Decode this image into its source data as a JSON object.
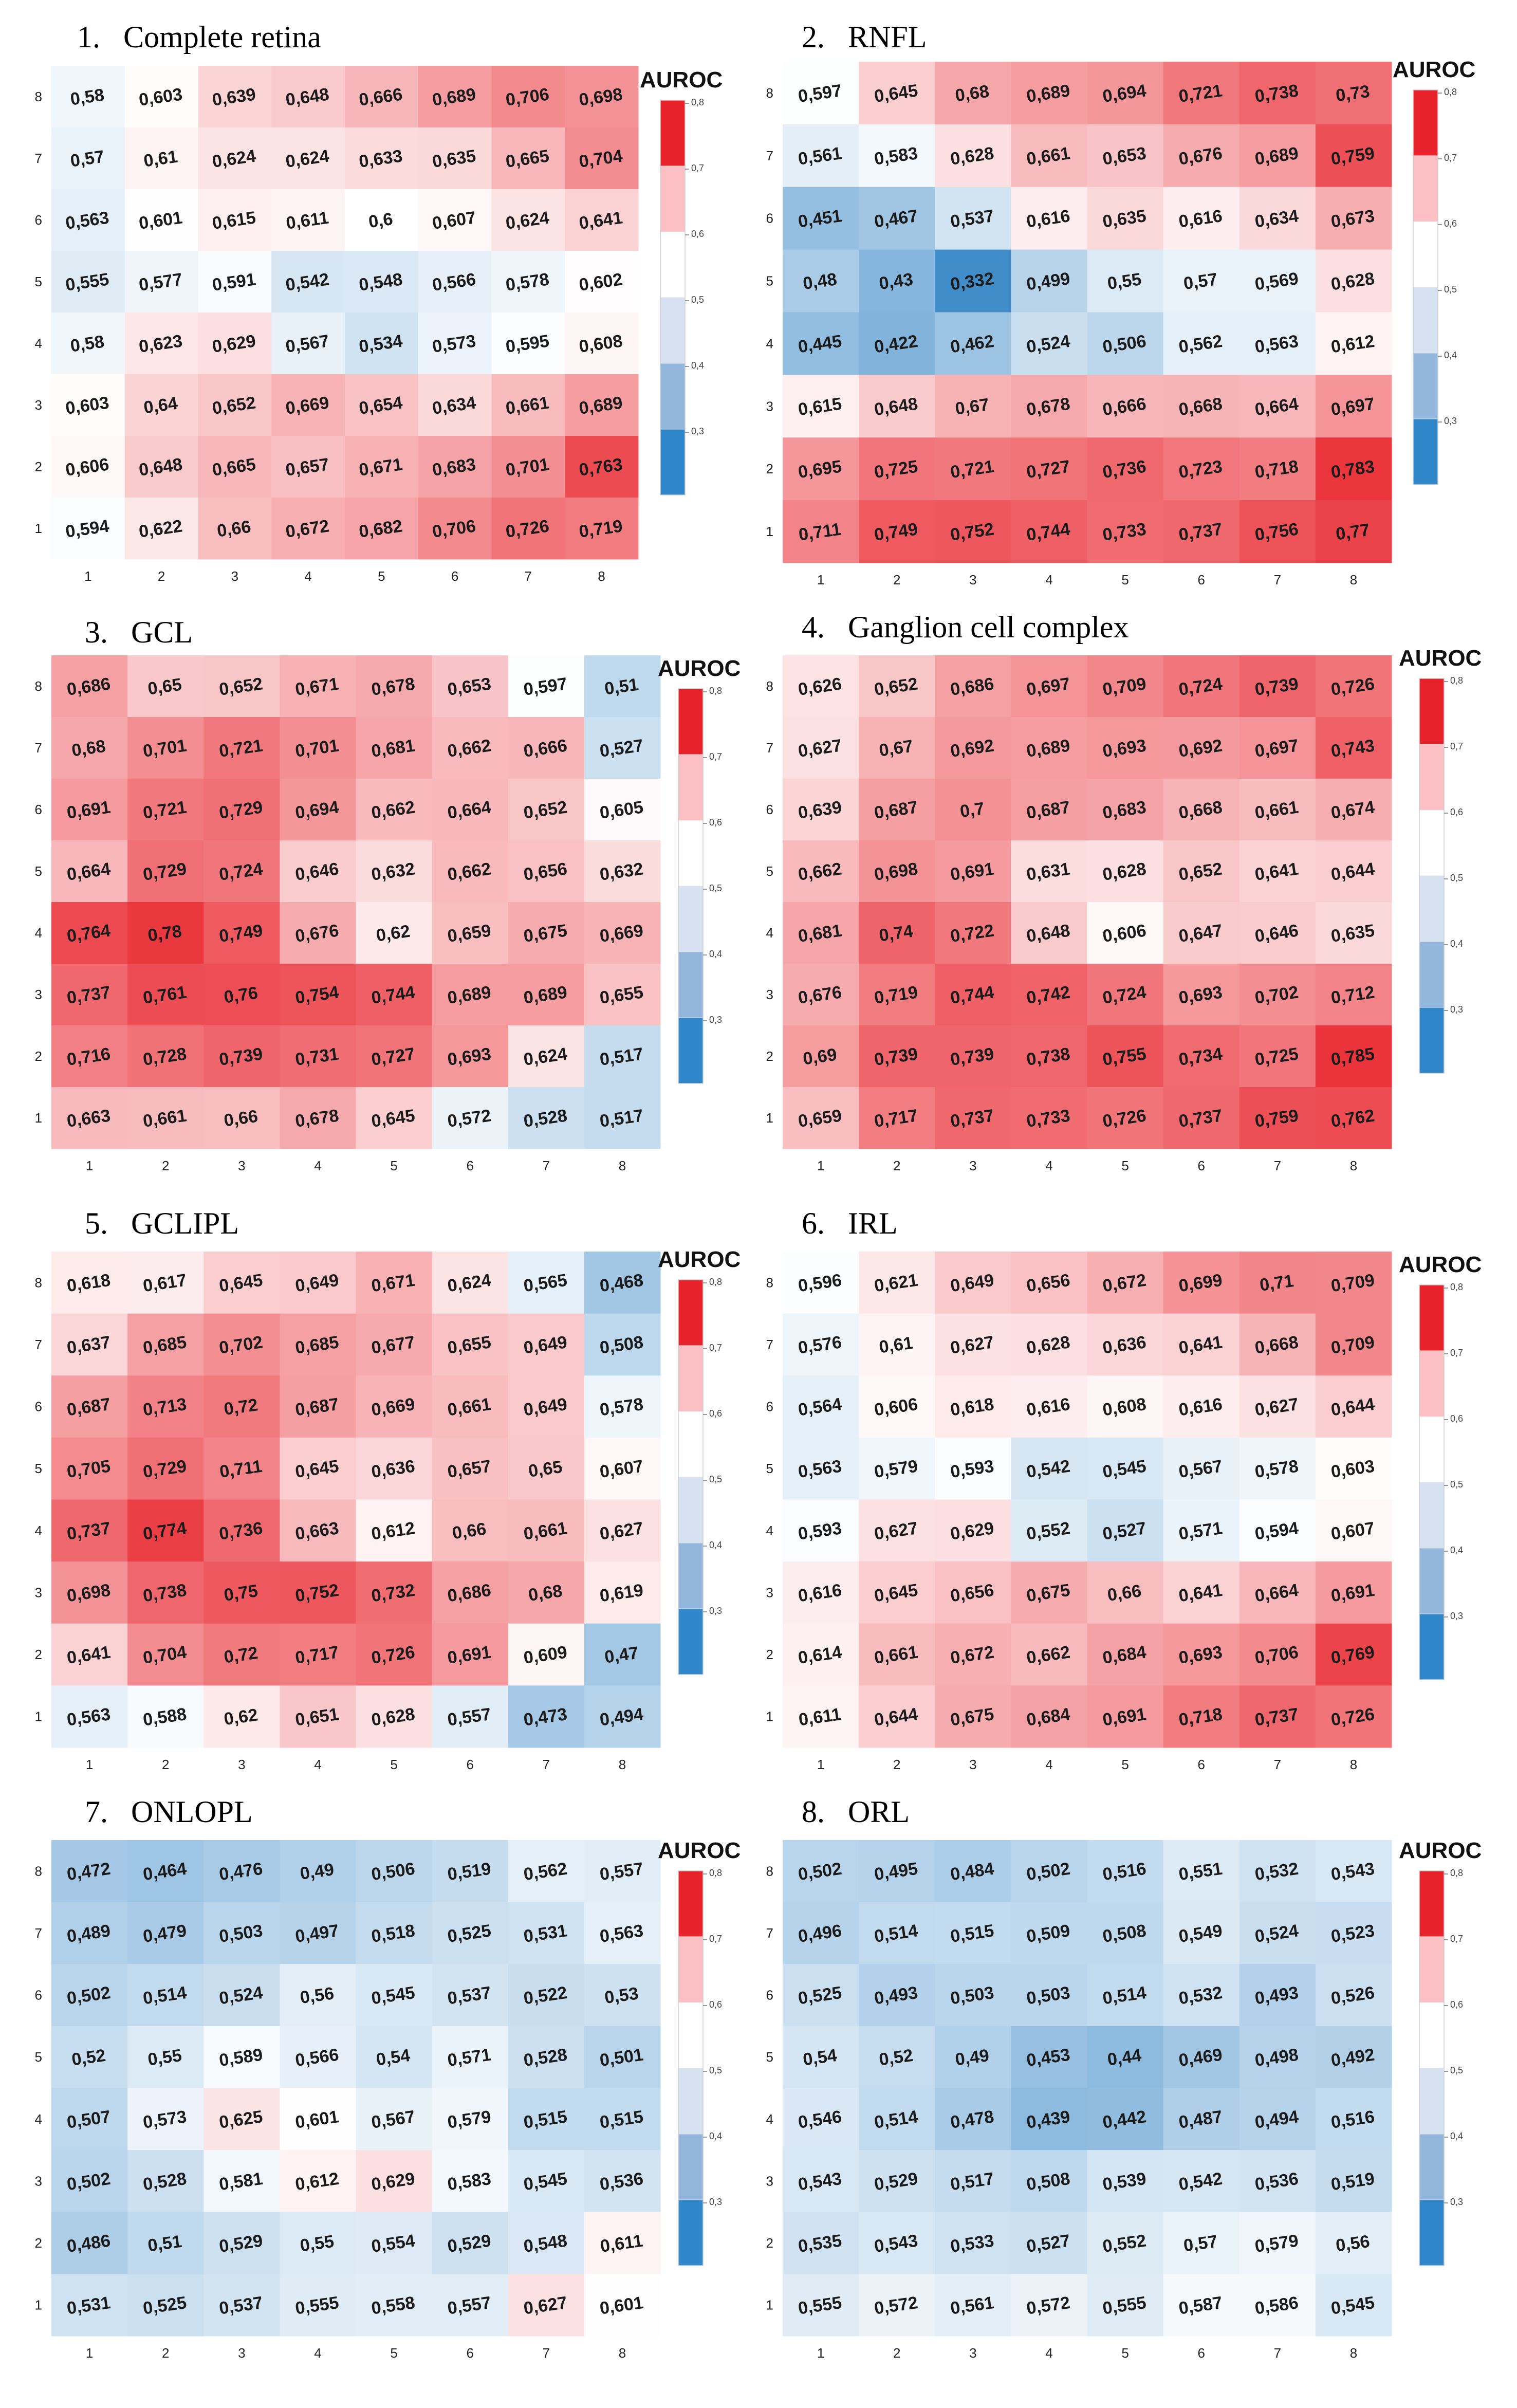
{
  "figure": {
    "colorbar_title": "AUROC",
    "colorbar_ticks": [
      "0,8",
      "0,7",
      "0,6",
      "0,5",
      "0,4",
      "0,3"
    ],
    "colorbar_colors": [
      "#e8222a",
      "#fbbfc4",
      "#ffffff",
      "#d6e2f2",
      "#93b6dc",
      "#2f86c8"
    ],
    "color_scale": {
      "min": 0.3,
      "mid": 0.6,
      "max": 0.8,
      "low_color": "#2a7fc3",
      "mid_color": "#ffffff",
      "high_color": "#e8222a"
    }
  },
  "chart_data": [
    {
      "type": "heatmap",
      "number": "1.",
      "title": "Complete retina",
      "x_ticks": [
        "1",
        "2",
        "3",
        "4",
        "5",
        "6",
        "7",
        "8"
      ],
      "y_ticks": [
        "8",
        "7",
        "6",
        "5",
        "4",
        "3",
        "2",
        "1"
      ],
      "values": [
        [
          "0,58",
          "0,603",
          "0,639",
          "0,648",
          "0,666",
          "0,689",
          "0,706",
          "0,698"
        ],
        [
          "0,57",
          "0,61",
          "0,624",
          "0,624",
          "0,633",
          "0,635",
          "0,665",
          "0,704"
        ],
        [
          "0,563",
          "0,601",
          "0,615",
          "0,611",
          "0,6",
          "0,607",
          "0,624",
          "0,641"
        ],
        [
          "0,555",
          "0,577",
          "0,591",
          "0,542",
          "0,548",
          "0,566",
          "0,578",
          "0,602"
        ],
        [
          "0,58",
          "0,623",
          "0,629",
          "0,567",
          "0,534",
          "0,573",
          "0,595",
          "0,608"
        ],
        [
          "0,603",
          "0,64",
          "0,652",
          "0,669",
          "0,654",
          "0,634",
          "0,661",
          "0,689"
        ],
        [
          "0,606",
          "0,648",
          "0,665",
          "0,657",
          "0,671",
          "0,683",
          "0,701",
          "0,763"
        ],
        [
          "0,594",
          "0,622",
          "0,66",
          "0,672",
          "0,682",
          "0,706",
          "0,726",
          "0,719"
        ]
      ]
    },
    {
      "type": "heatmap",
      "number": "2.",
      "title": "RNFL",
      "x_ticks": [
        "1",
        "2",
        "3",
        "4",
        "5",
        "6",
        "7",
        "8"
      ],
      "y_ticks": [
        "8",
        "7",
        "6",
        "5",
        "4",
        "3",
        "2",
        "1"
      ],
      "values": [
        [
          "0,597",
          "0,645",
          "0,68",
          "0,689",
          "0,694",
          "0,721",
          "0,738",
          "0,73"
        ],
        [
          "0,561",
          "0,583",
          "0,628",
          "0,661",
          "0,653",
          "0,676",
          "0,689",
          "0,759"
        ],
        [
          "0,451",
          "0,467",
          "0,537",
          "0,616",
          "0,635",
          "0,616",
          "0,634",
          "0,673"
        ],
        [
          "0,48",
          "0,43",
          "0,332",
          "0,499",
          "0,55",
          "0,57",
          "0,569",
          "0,628"
        ],
        [
          "0,445",
          "0,422",
          "0,462",
          "0,524",
          "0,506",
          "0,562",
          "0,563",
          "0,612"
        ],
        [
          "0,615",
          "0,648",
          "0,67",
          "0,678",
          "0,666",
          "0,668",
          "0,664",
          "0,697"
        ],
        [
          "0,695",
          "0,725",
          "0,721",
          "0,727",
          "0,736",
          "0,723",
          "0,718",
          "0,783"
        ],
        [
          "0,711",
          "0,749",
          "0,752",
          "0,744",
          "0,733",
          "0,737",
          "0,756",
          "0,77"
        ]
      ]
    },
    {
      "type": "heatmap",
      "number": "3.",
      "title": "GCL",
      "x_ticks": [
        "1",
        "2",
        "3",
        "4",
        "5",
        "6",
        "7",
        "8"
      ],
      "y_ticks": [
        "8",
        "7",
        "6",
        "5",
        "4",
        "3",
        "2",
        "1"
      ],
      "values": [
        [
          "0,686",
          "0,65",
          "0,652",
          "0,671",
          "0,678",
          "0,653",
          "0,597",
          "0,51"
        ],
        [
          "0,68",
          "0,701",
          "0,721",
          "0,701",
          "0,681",
          "0,662",
          "0,666",
          "0,527"
        ],
        [
          "0,691",
          "0,721",
          "0,729",
          "0,694",
          "0,662",
          "0,664",
          "0,652",
          "0,605"
        ],
        [
          "0,664",
          "0,729",
          "0,724",
          "0,646",
          "0,632",
          "0,662",
          "0,656",
          "0,632"
        ],
        [
          "0,764",
          "0,78",
          "0,749",
          "0,676",
          "0,62",
          "0,659",
          "0,675",
          "0,669"
        ],
        [
          "0,737",
          "0,761",
          "0,76",
          "0,754",
          "0,744",
          "0,689",
          "0,689",
          "0,655"
        ],
        [
          "0,716",
          "0,728",
          "0,739",
          "0,731",
          "0,727",
          "0,693",
          "0,624",
          "0,517"
        ],
        [
          "0,663",
          "0,661",
          "0,66",
          "0,678",
          "0,645",
          "0,572",
          "0,528",
          "0,517"
        ]
      ]
    },
    {
      "type": "heatmap",
      "number": "4.",
      "title": "Ganglion cell complex",
      "x_ticks": [
        "1",
        "2",
        "3",
        "4",
        "5",
        "6",
        "7",
        "8"
      ],
      "y_ticks": [
        "8",
        "7",
        "6",
        "5",
        "4",
        "3",
        "2",
        "1"
      ],
      "values": [
        [
          "0,626",
          "0,652",
          "0,686",
          "0,697",
          "0,709",
          "0,724",
          "0,739",
          "0,726"
        ],
        [
          "0,627",
          "0,67",
          "0,692",
          "0,689",
          "0,693",
          "0,692",
          "0,697",
          "0,743"
        ],
        [
          "0,639",
          "0,687",
          "0,7",
          "0,687",
          "0,683",
          "0,668",
          "0,661",
          "0,674"
        ],
        [
          "0,662",
          "0,698",
          "0,691",
          "0,631",
          "0,628",
          "0,652",
          "0,641",
          "0,644"
        ],
        [
          "0,681",
          "0,74",
          "0,722",
          "0,648",
          "0,606",
          "0,647",
          "0,646",
          "0,635"
        ],
        [
          "0,676",
          "0,719",
          "0,744",
          "0,742",
          "0,724",
          "0,693",
          "0,702",
          "0,712"
        ],
        [
          "0,69",
          "0,739",
          "0,739",
          "0,738",
          "0,755",
          "0,734",
          "0,725",
          "0,785"
        ],
        [
          "0,659",
          "0,717",
          "0,737",
          "0,733",
          "0,726",
          "0,737",
          "0,759",
          "0,762"
        ]
      ]
    },
    {
      "type": "heatmap",
      "number": "5.",
      "title": "GCLIPL",
      "x_ticks": [
        "1",
        "2",
        "3",
        "4",
        "5",
        "6",
        "7",
        "8"
      ],
      "y_ticks": [
        "8",
        "7",
        "6",
        "5",
        "4",
        "3",
        "2",
        "1"
      ],
      "values": [
        [
          "0,618",
          "0,617",
          "0,645",
          "0,649",
          "0,671",
          "0,624",
          "0,565",
          "0,468"
        ],
        [
          "0,637",
          "0,685",
          "0,702",
          "0,685",
          "0,677",
          "0,655",
          "0,649",
          "0,508"
        ],
        [
          "0,687",
          "0,713",
          "0,72",
          "0,687",
          "0,669",
          "0,661",
          "0,649",
          "0,578"
        ],
        [
          "0,705",
          "0,729",
          "0,711",
          "0,645",
          "0,636",
          "0,657",
          "0,65",
          "0,607"
        ],
        [
          "0,737",
          "0,774",
          "0,736",
          "0,663",
          "0,612",
          "0,66",
          "0,661",
          "0,627"
        ],
        [
          "0,698",
          "0,738",
          "0,75",
          "0,752",
          "0,732",
          "0,686",
          "0,68",
          "0,619"
        ],
        [
          "0,641",
          "0,704",
          "0,72",
          "0,717",
          "0,726",
          "0,691",
          "0,609",
          "0,47"
        ],
        [
          "0,563",
          "0,588",
          "0,62",
          "0,651",
          "0,628",
          "0,557",
          "0,473",
          "0,494"
        ]
      ]
    },
    {
      "type": "heatmap",
      "number": "6.",
      "title": "IRL",
      "x_ticks": [
        "1",
        "2",
        "3",
        "4",
        "5",
        "6",
        "7",
        "8"
      ],
      "y_ticks": [
        "8",
        "7",
        "6",
        "5",
        "4",
        "3",
        "2",
        "1"
      ],
      "values": [
        [
          "0,596",
          "0,621",
          "0,649",
          "0,656",
          "0,672",
          "0,699",
          "0,71",
          "0,709"
        ],
        [
          "0,576",
          "0,61",
          "0,627",
          "0,628",
          "0,636",
          "0,641",
          "0,668",
          "0,709"
        ],
        [
          "0,564",
          "0,606",
          "0,618",
          "0,616",
          "0,608",
          "0,616",
          "0,627",
          "0,644"
        ],
        [
          "0,563",
          "0,579",
          "0,593",
          "0,542",
          "0,545",
          "0,567",
          "0,578",
          "0,603"
        ],
        [
          "0,593",
          "0,627",
          "0,629",
          "0,552",
          "0,527",
          "0,571",
          "0,594",
          "0,607"
        ],
        [
          "0,616",
          "0,645",
          "0,656",
          "0,675",
          "0,66",
          "0,641",
          "0,664",
          "0,691"
        ],
        [
          "0,614",
          "0,661",
          "0,672",
          "0,662",
          "0,684",
          "0,693",
          "0,706",
          "0,769"
        ],
        [
          "0,611",
          "0,644",
          "0,675",
          "0,684",
          "0,691",
          "0,718",
          "0,737",
          "0,726"
        ]
      ]
    },
    {
      "type": "heatmap",
      "number": "7.",
      "title": "ONLOPL",
      "x_ticks": [
        "1",
        "2",
        "3",
        "4",
        "5",
        "6",
        "7",
        "8"
      ],
      "y_ticks": [
        "8",
        "7",
        "6",
        "5",
        "4",
        "3",
        "2",
        "1"
      ],
      "values": [
        [
          "0,472",
          "0,464",
          "0,476",
          "0,49",
          "0,506",
          "0,519",
          "0,562",
          "0,557"
        ],
        [
          "0,489",
          "0,479",
          "0,503",
          "0,497",
          "0,518",
          "0,525",
          "0,531",
          "0,563"
        ],
        [
          "0,502",
          "0,514",
          "0,524",
          "0,56",
          "0,545",
          "0,537",
          "0,522",
          "0,53"
        ],
        [
          "0,52",
          "0,55",
          "0,589",
          "0,566",
          "0,54",
          "0,571",
          "0,528",
          "0,501"
        ],
        [
          "0,507",
          "0,573",
          "0,625",
          "0,601",
          "0,567",
          "0,579",
          "0,515",
          "0,515"
        ],
        [
          "0,502",
          "0,528",
          "0,581",
          "0,612",
          "0,629",
          "0,583",
          "0,545",
          "0,536"
        ],
        [
          "0,486",
          "0,51",
          "0,529",
          "0,55",
          "0,554",
          "0,529",
          "0,548",
          "0,611"
        ],
        [
          "0,531",
          "0,525",
          "0,537",
          "0,555",
          "0,558",
          "0,557",
          "0,627",
          "0,601"
        ]
      ]
    },
    {
      "type": "heatmap",
      "number": "8.",
      "title": "ORL",
      "x_ticks": [
        "1",
        "2",
        "3",
        "4",
        "5",
        "6",
        "7",
        "8"
      ],
      "y_ticks": [
        "8",
        "7",
        "6",
        "5",
        "4",
        "3",
        "2",
        "1"
      ],
      "values": [
        [
          "0,502",
          "0,495",
          "0,484",
          "0,502",
          "0,516",
          "0,551",
          "0,532",
          "0,543"
        ],
        [
          "0,496",
          "0,514",
          "0,515",
          "0,509",
          "0,508",
          "0,549",
          "0,524",
          "0,523"
        ],
        [
          "0,525",
          "0,493",
          "0,503",
          "0,503",
          "0,514",
          "0,532",
          "0,493",
          "0,526"
        ],
        [
          "0,54",
          "0,52",
          "0,49",
          "0,453",
          "0,44",
          "0,469",
          "0,498",
          "0,492"
        ],
        [
          "0,546",
          "0,514",
          "0,478",
          "0,439",
          "0,442",
          "0,487",
          "0,494",
          "0,516"
        ],
        [
          "0,543",
          "0,529",
          "0,517",
          "0,508",
          "0,539",
          "0,542",
          "0,536",
          "0,519"
        ],
        [
          "0,535",
          "0,543",
          "0,533",
          "0,527",
          "0,552",
          "0,57",
          "0,579",
          "0,56"
        ],
        [
          "0,555",
          "0,572",
          "0,561",
          "0,572",
          "0,555",
          "0,587",
          "0,586",
          "0,545"
        ]
      ]
    }
  ]
}
